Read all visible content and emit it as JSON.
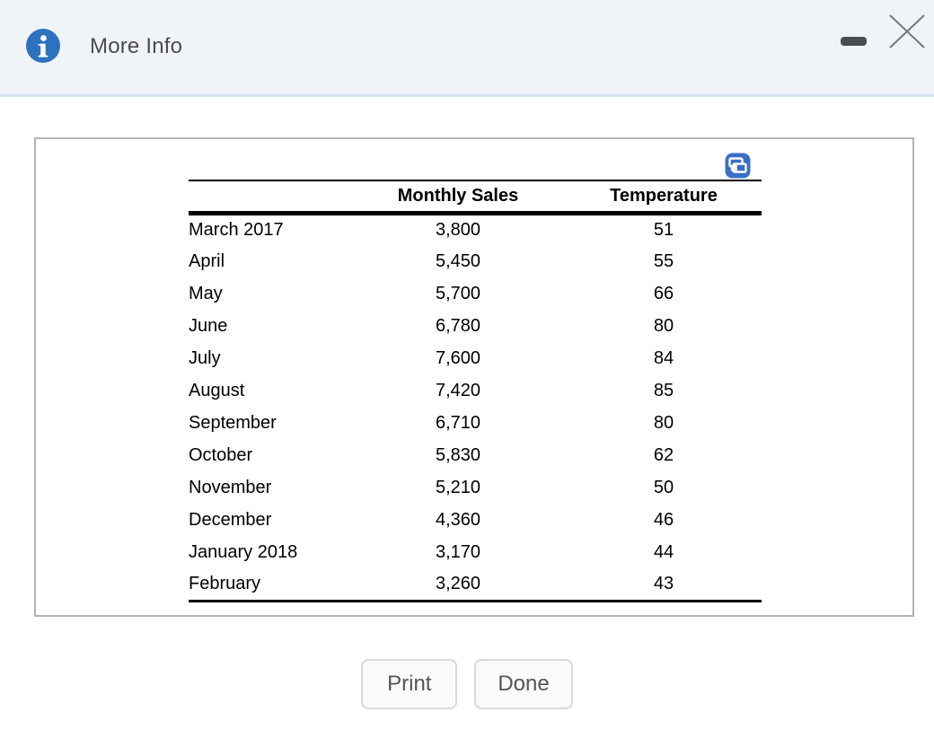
{
  "header": {
    "title": "More Info",
    "icons": {
      "info": "info-icon",
      "minimize": "minimize-icon",
      "close": "close-icon"
    }
  },
  "panel": {
    "copy_icon": "copy-icon",
    "table": {
      "headers": {
        "sales": "Monthly Sales",
        "temp": "Temperature"
      },
      "row_fields": [
        "month",
        "sales",
        "temp"
      ],
      "rows": [
        {
          "month": "March 2017",
          "sales": "3,800",
          "temp": "51"
        },
        {
          "month": "April",
          "sales": "5,450",
          "temp": "55"
        },
        {
          "month": "May",
          "sales": "5,700",
          "temp": "66"
        },
        {
          "month": "June",
          "sales": "6,780",
          "temp": "80"
        },
        {
          "month": "July",
          "sales": "7,600",
          "temp": "84"
        },
        {
          "month": "August",
          "sales": "7,420",
          "temp": "85"
        },
        {
          "month": "September",
          "sales": "6,710",
          "temp": "80"
        },
        {
          "month": "October",
          "sales": "5,830",
          "temp": "62"
        },
        {
          "month": "November",
          "sales": "5,210",
          "temp": "50"
        },
        {
          "month": "December",
          "sales": "4,360",
          "temp": "46"
        },
        {
          "month": "January 2018",
          "sales": "3,170",
          "temp": "44"
        },
        {
          "month": "February",
          "sales": "3,260",
          "temp": "43"
        }
      ]
    }
  },
  "buttons": {
    "print": "Print",
    "done": "Done"
  },
  "colors": {
    "titlebar_bg": "#f0f4f9",
    "titlebar_divider": "#d6e4f2",
    "info_icon_blue": "#2e72bf",
    "copy_icon_blue": "#3a6fc7",
    "panel_border": "#b3b3b3",
    "table_rule": "#000000",
    "title_text": "#4c4c4c",
    "button_text": "#555555"
  }
}
